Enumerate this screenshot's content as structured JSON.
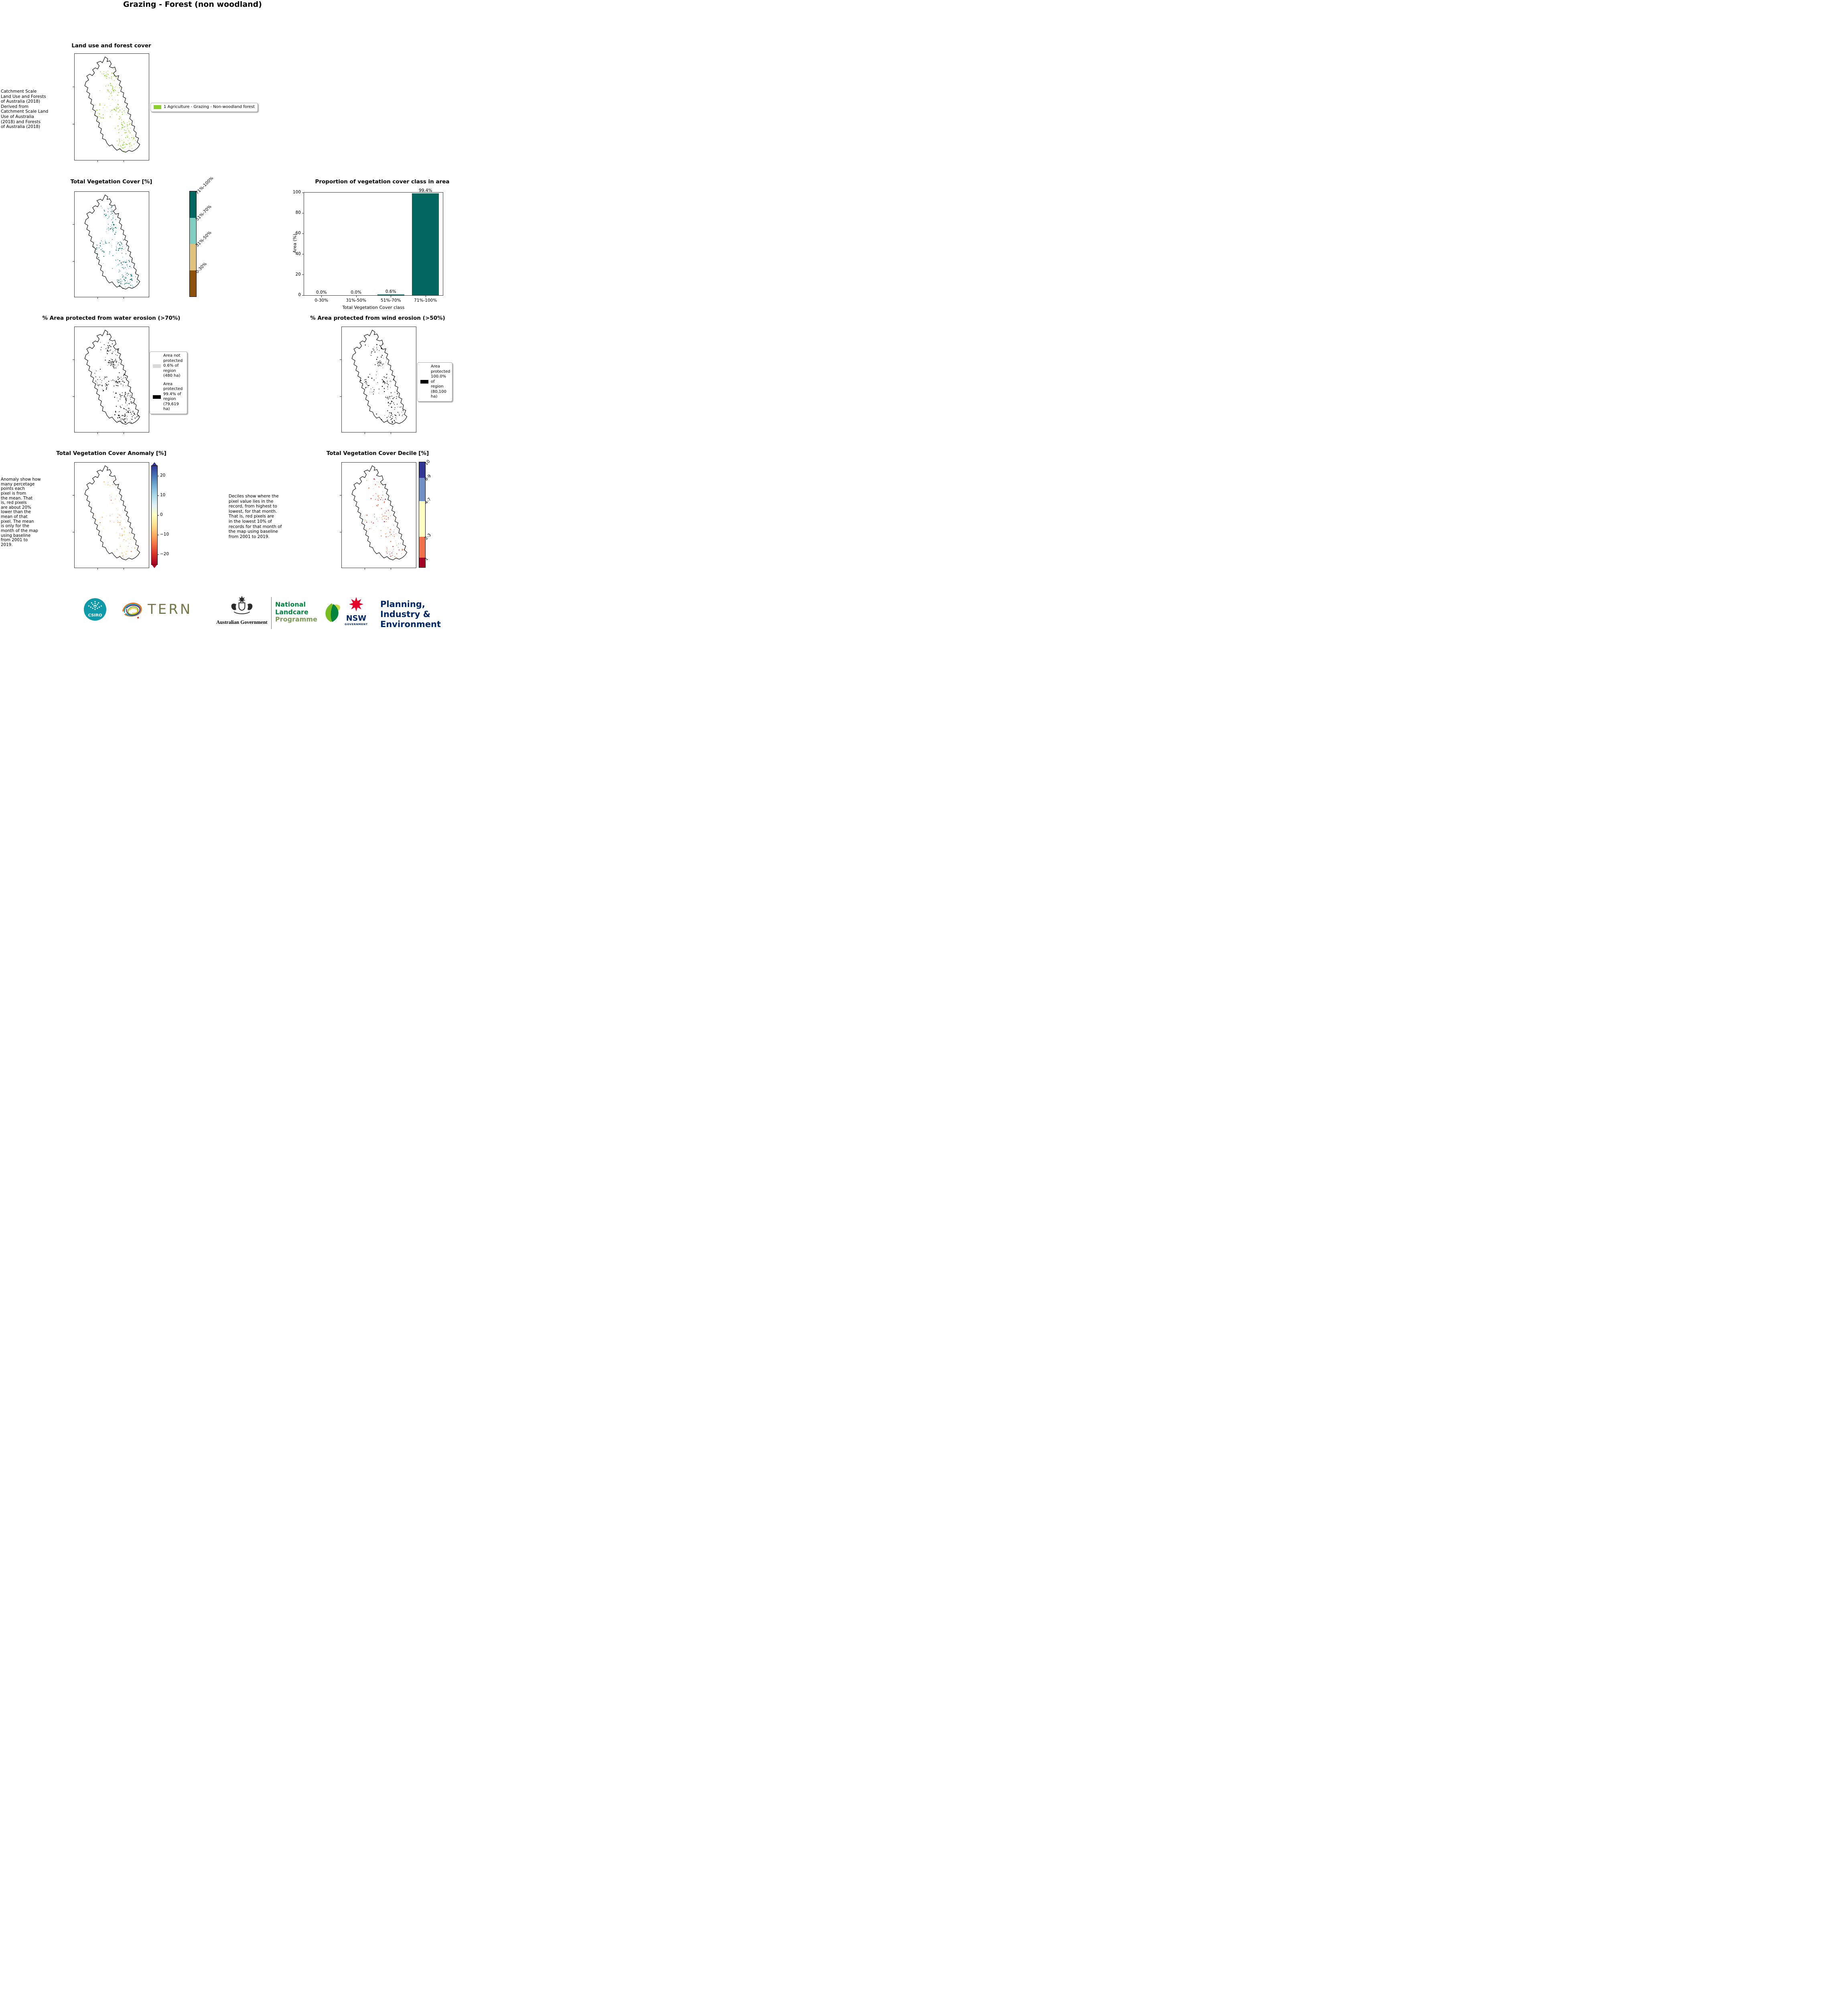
{
  "page": {
    "title": "Grazing - Forest (non woodland)"
  },
  "landuse": {
    "title": "Land use and forest cover",
    "side_text": " Catchment Scale\nLand Use and Forests\nof Australia (2018)\nDerived from\nCatchment Scale Land\nUse of Australia\n(2018) and Forests\nof Australia (2018)",
    "legend": [
      {
        "label": "1 Agriculture - Grazing - Non-woodland forest",
        "color": "#8bd02c"
      }
    ]
  },
  "tvc": {
    "title": "Total Vegetation Cover [%]",
    "colorbar": [
      {
        "label": "71%-100%",
        "color": "#01665e"
      },
      {
        "label": "51%-70%",
        "color": "#80cdc1"
      },
      {
        "label": "31%-50%",
        "color": "#dfc27d"
      },
      {
        "label": "0-30%",
        "color": "#8c510a"
      }
    ]
  },
  "chart_data": {
    "type": "bar",
    "title": "Proportion of vegetation cover class in area",
    "categories": [
      "0-30%",
      "31%-50%",
      "51%-70%",
      "71%-100%"
    ],
    "values": [
      0.0,
      0.0,
      0.6,
      99.4
    ],
    "bar_labels": [
      "0.0%",
      "0.0%",
      "0.6%",
      "99.4%"
    ],
    "xlabel": "Total Vegetation Cover class",
    "ylabel": "Area (%)",
    "ylim": [
      0,
      100
    ],
    "yticks": [
      0,
      20,
      40,
      60,
      80,
      100
    ],
    "bar_color": "#01665e",
    "grid": false,
    "legend_position": "none"
  },
  "water": {
    "title": "% Area protected from water erosion (>70%)",
    "legend": [
      {
        "label": "Area not\nprotected\n0.6% of\nregion\n(480 ha)",
        "color": "#d9d9d9"
      },
      {
        "label": "Area\nprotected\n99.4% of\nregion\n(79,619\nha)",
        "color": "#000000"
      }
    ]
  },
  "wind": {
    "title": "% Area protected from wind erosion (>50%)",
    "legend": [
      {
        "label": "Area\nprotected\n100.0% of\nregion\n(80,100\nha)",
        "color": "#000000"
      }
    ]
  },
  "anomaly": {
    "title": "Total Vegetation Cover Anomaly [%]",
    "side_text": "Anomaly show how\nmany percetage\npoints each\npixel is from\nthe mean. That\nis, red pixels\nare about 20%\nlower than the\nmean of that\npixel. The mean\nis only for the\nmonth of the map\nusing baseline\nfrom 2001 to\n2019.",
    "ticks": [
      "20",
      "10",
      "0",
      "−10",
      "−20"
    ]
  },
  "decile": {
    "title": "Total Vegetation Cover Decile [%]",
    "info_text": "Deciles show where the\npixel value lies in the\nrecord, from highest to\nlowest, for that month.\nThat is, red pixels are\nin the lowest 10% of\nrecords for that month of\nthe map using baseline\nfrom 2001 to 2019.",
    "colorbar": [
      {
        "label": "10",
        "color": "#313695",
        "frac": 0.15
      },
      {
        "label": "8-9",
        "color": "#6f8fc6",
        "frac": 0.22
      },
      {
        "label": "4-7",
        "color": "#ffffbf",
        "frac": 0.34
      },
      {
        "label": "2-3",
        "color": "#f0704a",
        "frac": 0.2
      },
      {
        "label": "1",
        "color": "#a50026",
        "frac": 0.09
      }
    ]
  },
  "footer": {
    "csiro_label": "CSIRO",
    "tern_label": "TERN",
    "ausgov_label": "Australian Government",
    "landcare_lines": [
      "National",
      "Landcare",
      "Programme"
    ],
    "nsw_label": "NSW",
    "nsw_sub": "GOVERNMENT",
    "dpie_lines": [
      "Planning,",
      "Industry &",
      "Environment"
    ]
  }
}
